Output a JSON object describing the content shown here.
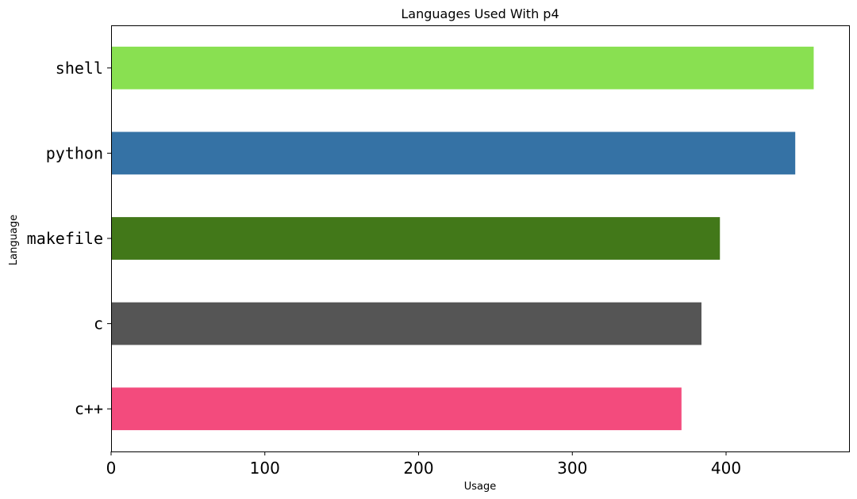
{
  "chart_data": {
    "type": "bar",
    "orientation": "horizontal",
    "title": "Languages Used With p4",
    "xlabel": "Usage",
    "ylabel": "Language",
    "categories": [
      "c++",
      "c",
      "makefile",
      "python",
      "shell"
    ],
    "values": [
      371,
      384,
      396,
      445,
      457
    ],
    "colors": [
      "#f34b7d",
      "#555555",
      "#427819",
      "#3572a5",
      "#89e051"
    ],
    "xlim": [
      0,
      480
    ],
    "xticks": [
      0,
      100,
      200,
      300,
      400
    ],
    "xtick_labels": [
      "0",
      "100",
      "200",
      "300",
      "400"
    ],
    "grid": false,
    "legend": "none"
  }
}
